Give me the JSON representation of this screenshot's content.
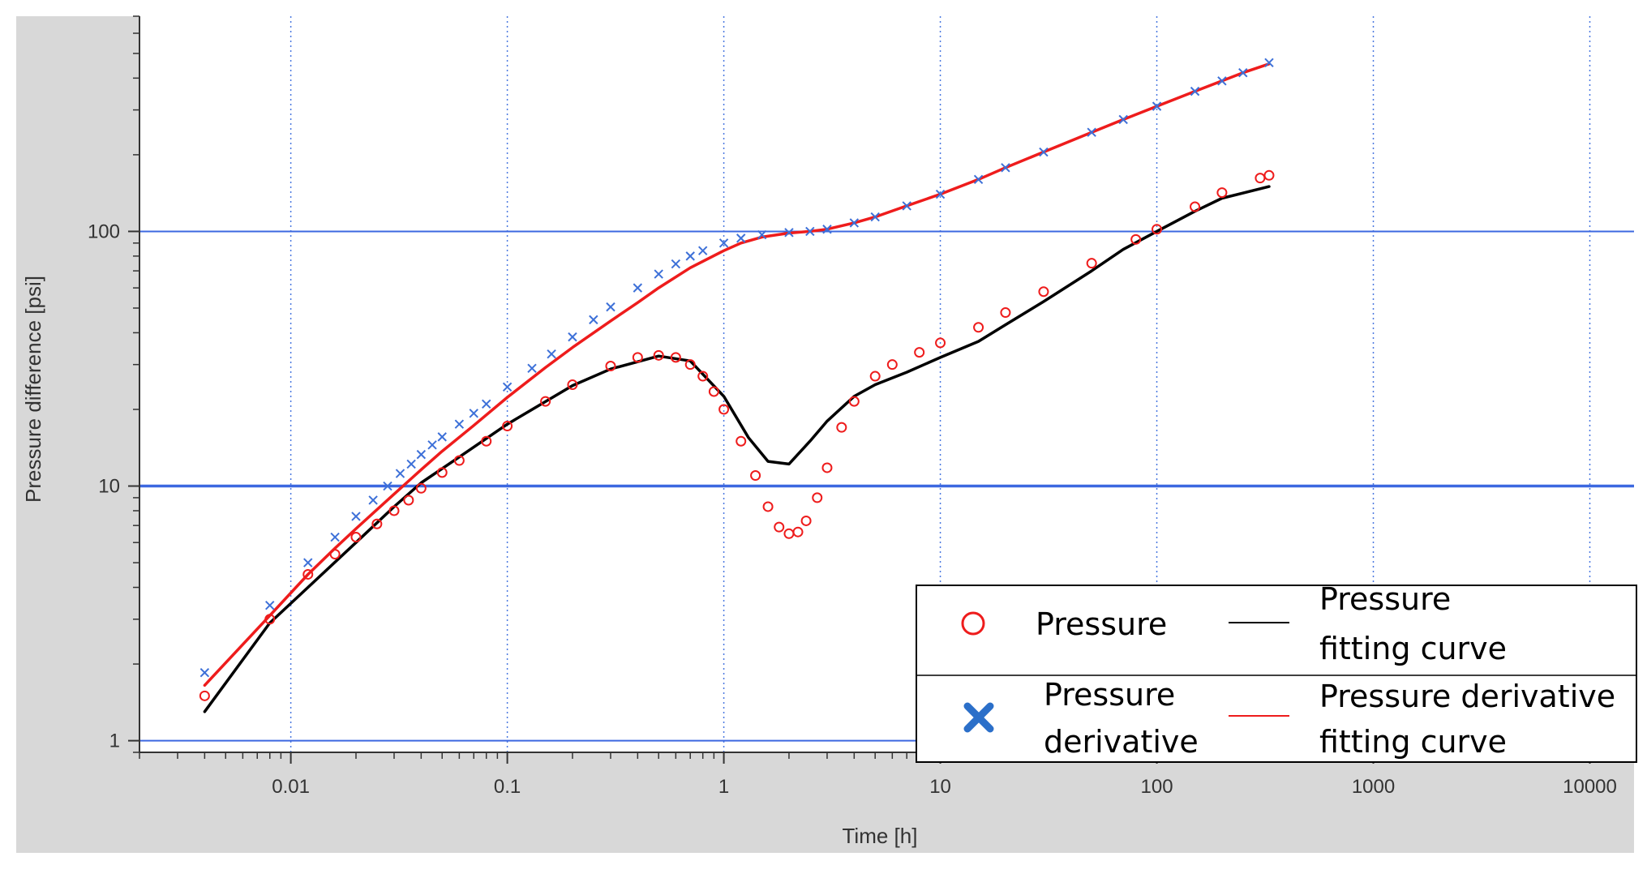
{
  "chart_data": {
    "type": "scatter",
    "xlabel": "Time [h]",
    "ylabel": "Pressure difference [psi]",
    "xscale": "log",
    "yscale": "log",
    "xlim": [
      0.002,
      16000
    ],
    "ylim": [
      0.9,
      700
    ],
    "xticks": [
      0.01,
      0.1,
      1,
      10,
      100,
      1000,
      10000
    ],
    "xtick_labels": [
      "0.01",
      "0.1",
      "1",
      "10",
      "100",
      "1000",
      "10000"
    ],
    "yticks": [
      1,
      10,
      100
    ],
    "ytick_labels": [
      "1",
      "10",
      "100"
    ],
    "grid": true,
    "legend_position": "bottom-right",
    "legend": {
      "pressure": "Pressure",
      "pressure_fit_line1": "Pressure",
      "pressure_fit_line2": "fitting curve",
      "derivative_line1": "Pressure",
      "derivative_line2": "derivative",
      "derivative_fit_line1": "Pressure derivative",
      "derivative_fit_line2": "fitting curve"
    },
    "series": [
      {
        "name": "Pressure",
        "style": "marker-circle",
        "color": "#ee1c1c",
        "x": [
          0.004,
          0.008,
          0.012,
          0.016,
          0.02,
          0.025,
          0.03,
          0.035,
          0.04,
          0.05,
          0.06,
          0.08,
          0.1,
          0.15,
          0.2,
          0.3,
          0.4,
          0.5,
          0.6,
          0.7,
          0.8,
          0.9,
          1.0,
          1.2,
          1.4,
          1.6,
          1.8,
          2.0,
          2.2,
          2.4,
          2.7,
          3.0,
          3.5,
          4.0,
          5.0,
          6.0,
          8.0,
          10,
          15,
          20,
          30,
          50,
          80,
          100,
          150,
          200,
          300,
          330
        ],
        "y": [
          1.5,
          3.0,
          4.5,
          5.4,
          6.3,
          7.1,
          8.0,
          8.8,
          9.8,
          11.3,
          12.6,
          15.0,
          17.2,
          21.5,
          25.0,
          29.6,
          32.0,
          32.6,
          32.0,
          30.0,
          27.0,
          23.5,
          20.0,
          15.0,
          11.0,
          8.3,
          6.9,
          6.5,
          6.6,
          7.3,
          9.0,
          11.8,
          17.0,
          21.5,
          27.0,
          30.0,
          33.5,
          36.5,
          42.0,
          48.0,
          58.0,
          75.0,
          93.0,
          102.0,
          125.0,
          142.0,
          162.0,
          166.0
        ]
      },
      {
        "name": "Pressure fitting curve",
        "style": "line",
        "color": "#000000",
        "x": [
          0.004,
          0.008,
          0.012,
          0.02,
          0.03,
          0.04,
          0.06,
          0.1,
          0.2,
          0.3,
          0.5,
          0.7,
          1.0,
          1.3,
          1.6,
          2.0,
          2.5,
          3.0,
          4.0,
          5.0,
          7.0,
          10,
          15,
          20,
          30,
          50,
          70,
          100,
          150,
          200,
          330
        ],
        "y": [
          1.3,
          2.9,
          4.0,
          6.0,
          8.3,
          10.3,
          13.0,
          17.5,
          24.8,
          28.8,
          32.4,
          31.0,
          22.5,
          15.5,
          12.5,
          12.2,
          15.0,
          18.0,
          22.5,
          25.0,
          28.0,
          32.0,
          37.0,
          43.0,
          53.0,
          70.0,
          85.0,
          100.0,
          120.0,
          135.0,
          150.0
        ]
      },
      {
        "name": "Pressure derivative",
        "style": "marker-x",
        "color": "#3d70d8",
        "x": [
          0.004,
          0.008,
          0.012,
          0.016,
          0.02,
          0.024,
          0.028,
          0.032,
          0.036,
          0.04,
          0.045,
          0.05,
          0.06,
          0.07,
          0.08,
          0.1,
          0.13,
          0.16,
          0.2,
          0.25,
          0.3,
          0.4,
          0.5,
          0.6,
          0.7,
          0.8,
          1.0,
          1.2,
          1.5,
          2.0,
          2.5,
          3.0,
          4.0,
          5.0,
          7.0,
          10,
          15,
          20,
          30,
          50,
          70,
          100,
          150,
          200,
          250,
          330
        ],
        "y": [
          1.85,
          3.4,
          5.0,
          6.3,
          7.6,
          8.8,
          10.0,
          11.2,
          12.2,
          13.3,
          14.5,
          15.6,
          17.5,
          19.3,
          21.0,
          24.5,
          29.0,
          33.0,
          38.5,
          45.0,
          50.5,
          60.0,
          68.0,
          74.5,
          80.0,
          84.0,
          90.0,
          94.0,
          97.0,
          99.0,
          100.0,
          102.0,
          108.0,
          114.0,
          126.0,
          140.0,
          160.0,
          178.0,
          205.0,
          245.0,
          275.0,
          310.0,
          355.0,
          390.0,
          420.0,
          460.0
        ]
      },
      {
        "name": "Pressure derivative fitting curve",
        "style": "line",
        "color": "#ee1c1c",
        "x": [
          0.004,
          0.008,
          0.012,
          0.016,
          0.02,
          0.03,
          0.04,
          0.05,
          0.07,
          0.1,
          0.15,
          0.2,
          0.3,
          0.4,
          0.5,
          0.7,
          1.0,
          1.2,
          1.5,
          2.0,
          2.5,
          3.0,
          4.0,
          5.0,
          7.0,
          10,
          15,
          20,
          30,
          50,
          70,
          100,
          150,
          200,
          250,
          330
        ],
        "y": [
          1.65,
          3.1,
          4.5,
          5.7,
          6.8,
          9.3,
          11.6,
          13.7,
          17.3,
          22.3,
          29.2,
          35.0,
          44.5,
          52.5,
          60.0,
          72.0,
          84.0,
          90.0,
          95.0,
          98.5,
          100.0,
          102.0,
          108.0,
          114.0,
          126.0,
          140.0,
          160.0,
          178.0,
          205.0,
          245.0,
          275.0,
          310.0,
          355.0,
          390.0,
          420.0,
          455.0
        ]
      }
    ]
  }
}
